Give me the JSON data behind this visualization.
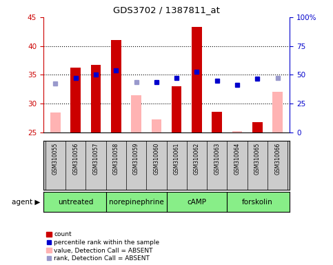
{
  "title": "GDS3702 / 1387811_at",
  "samples": [
    "GSM310055",
    "GSM310056",
    "GSM310057",
    "GSM310058",
    "GSM310059",
    "GSM310060",
    "GSM310061",
    "GSM310062",
    "GSM310063",
    "GSM310064",
    "GSM310065",
    "GSM310066"
  ],
  "red_bars": [
    null,
    36.3,
    36.7,
    41.1,
    null,
    null,
    33.0,
    43.3,
    28.6,
    null,
    26.8,
    null
  ],
  "pink_bars": [
    28.5,
    null,
    null,
    null,
    31.5,
    27.3,
    null,
    null,
    null,
    25.2,
    null,
    32.1
  ],
  "blue_squares": [
    null,
    34.5,
    35.0,
    35.8,
    null,
    33.7,
    34.5,
    35.5,
    34.0,
    33.3,
    34.3,
    null
  ],
  "lavender_squares": [
    33.5,
    null,
    null,
    null,
    33.8,
    null,
    null,
    null,
    null,
    null,
    null,
    34.5
  ],
  "groups": [
    {
      "label": "untreated",
      "start": 0,
      "end": 2
    },
    {
      "label": "norepinephrine",
      "start": 3,
      "end": 5
    },
    {
      "label": "cAMP",
      "start": 6,
      "end": 8
    },
    {
      "label": "forskolin",
      "start": 9,
      "end": 11
    }
  ],
  "ylim_left": [
    25,
    45
  ],
  "ylim_right": [
    0,
    100
  ],
  "yticks_left": [
    25,
    30,
    35,
    40,
    45
  ],
  "yticks_right": [
    0,
    25,
    50,
    75,
    100
  ],
  "ytick_labels_right": [
    "0",
    "25",
    "50",
    "75",
    "100%"
  ],
  "bar_width": 0.5,
  "left_axis_color": "#cc0000",
  "right_axis_color": "#0000cc",
  "plot_bg_color": "#ffffff",
  "group_bg_color": "#88ee88",
  "sample_bg_color": "#cccccc",
  "figsize": [
    4.83,
    3.84
  ],
  "dpi": 100
}
